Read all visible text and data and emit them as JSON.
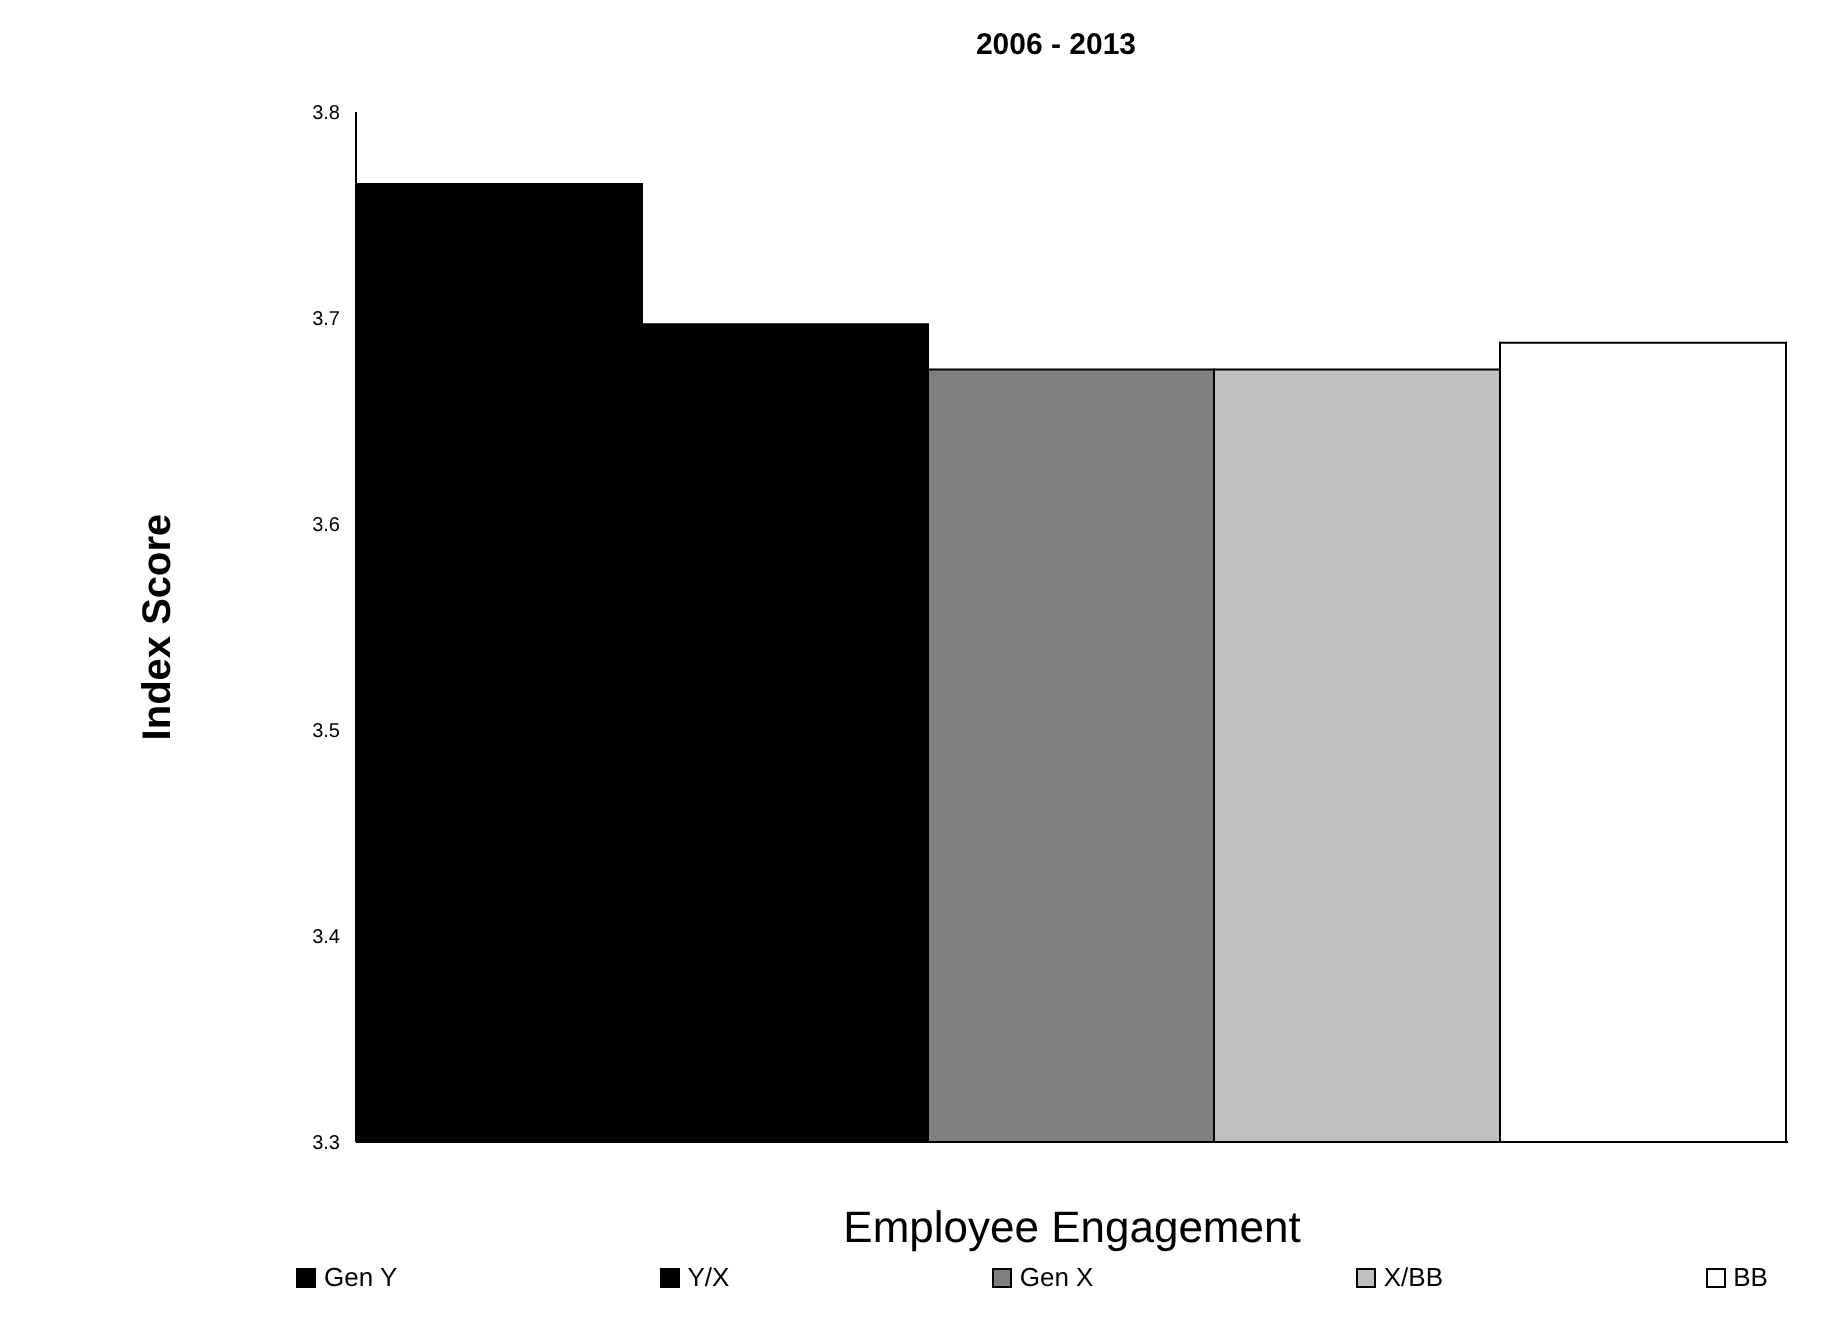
{
  "chart_data": {
    "type": "bar",
    "title": "2006 - 2013",
    "xlabel": "Employee Engagement",
    "ylabel": "Index Score",
    "categories": [
      null
    ],
    "series": [
      {
        "name": "Gen Y",
        "color": "#000000",
        "values": [
          3.765
        ]
      },
      {
        "name": "Y/X",
        "color": "#000000",
        "values": [
          3.697
        ]
      },
      {
        "name": "Gen X",
        "color": "#7f7f7f",
        "values": [
          3.675
        ]
      },
      {
        "name": "X/BB",
        "color": "#bfbfbf",
        "values": [
          3.675
        ]
      },
      {
        "name": "BB",
        "color": "#ffffff",
        "values": [
          3.688
        ]
      }
    ],
    "ylim": [
      3.3,
      3.8
    ],
    "yticks": [
      3.3,
      3.4,
      3.5,
      3.6,
      3.7,
      3.8
    ],
    "grid": false,
    "legend": "bottom"
  }
}
